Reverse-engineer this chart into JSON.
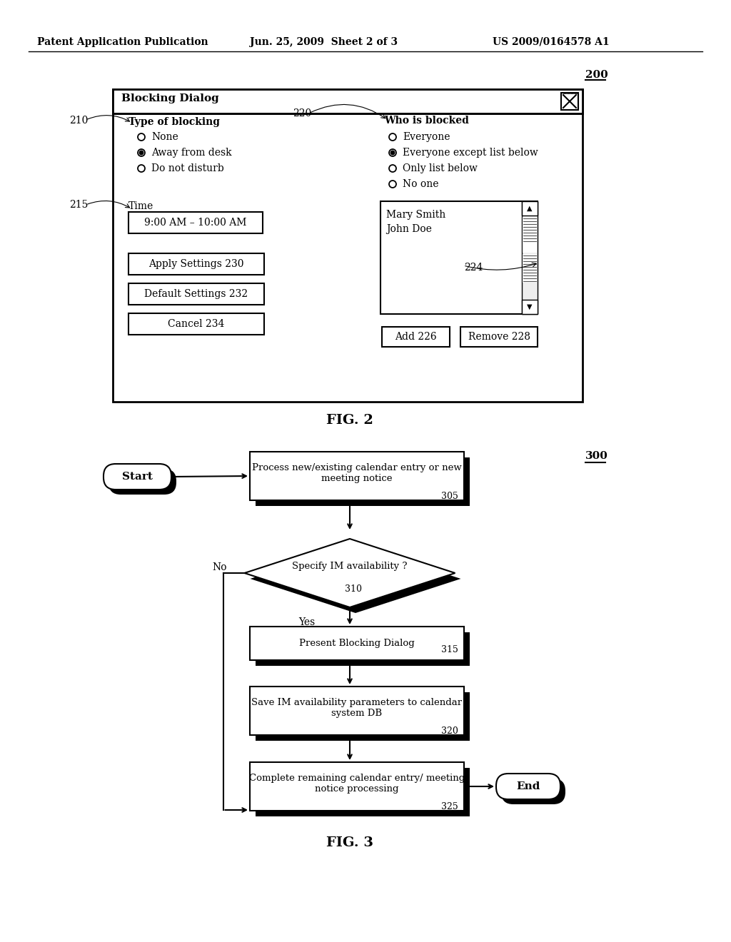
{
  "header_left": "Patent Application Publication",
  "header_center": "Jun. 25, 2009  Sheet 2 of 3",
  "header_right": "US 2009/0164578 A1",
  "fig2_label": "FIG. 2",
  "fig3_label": "FIG. 3",
  "dialog_title": "Blocking Dialog",
  "ref_200": "200",
  "ref_210": "210",
  "ref_215": "215",
  "ref_220": "220",
  "ref_224": "224",
  "label_type_blocking": "Type of blocking",
  "label_who_blocked": "Who is blocked",
  "label_time": "Time",
  "radio_none": "None",
  "radio_away": "Away from desk",
  "radio_disturb": "Do not disturb",
  "radio_everyone": "Everyone",
  "radio_everyone_except": "Everyone except list below",
  "radio_only_list": "Only list below",
  "radio_no_one": "No one",
  "time_value": "9:00 AM – 10:00 AM",
  "btn_apply": "Apply Settings 230",
  "btn_default": "Default Settings 232",
  "btn_cancel": "Cancel 234",
  "btn_add": "Add 226",
  "btn_remove": "Remove 228",
  "list_items": [
    "Mary Smith",
    "John Doe"
  ],
  "flowchart_300": "300",
  "fc_start": "Start",
  "fc_305_text": "Process new/existing calendar entry or new\nmeeting notice",
  "fc_305_ref": "305",
  "fc_310_text": "Specify IM availability ?",
  "fc_310_ref": "310",
  "fc_no": "No",
  "fc_yes": "Yes",
  "fc_315_text": "Present Blocking Dialog",
  "fc_315_ref": "315",
  "fc_320_text": "Save IM availability parameters to calendar\nsystem DB",
  "fc_320_ref": "320",
  "fc_325_text": "Complete remaining calendar entry/ meeting\nnotice processing",
  "fc_325_ref": "325",
  "fc_end": "End",
  "bg_color": "#ffffff",
  "text_color": "#000000"
}
